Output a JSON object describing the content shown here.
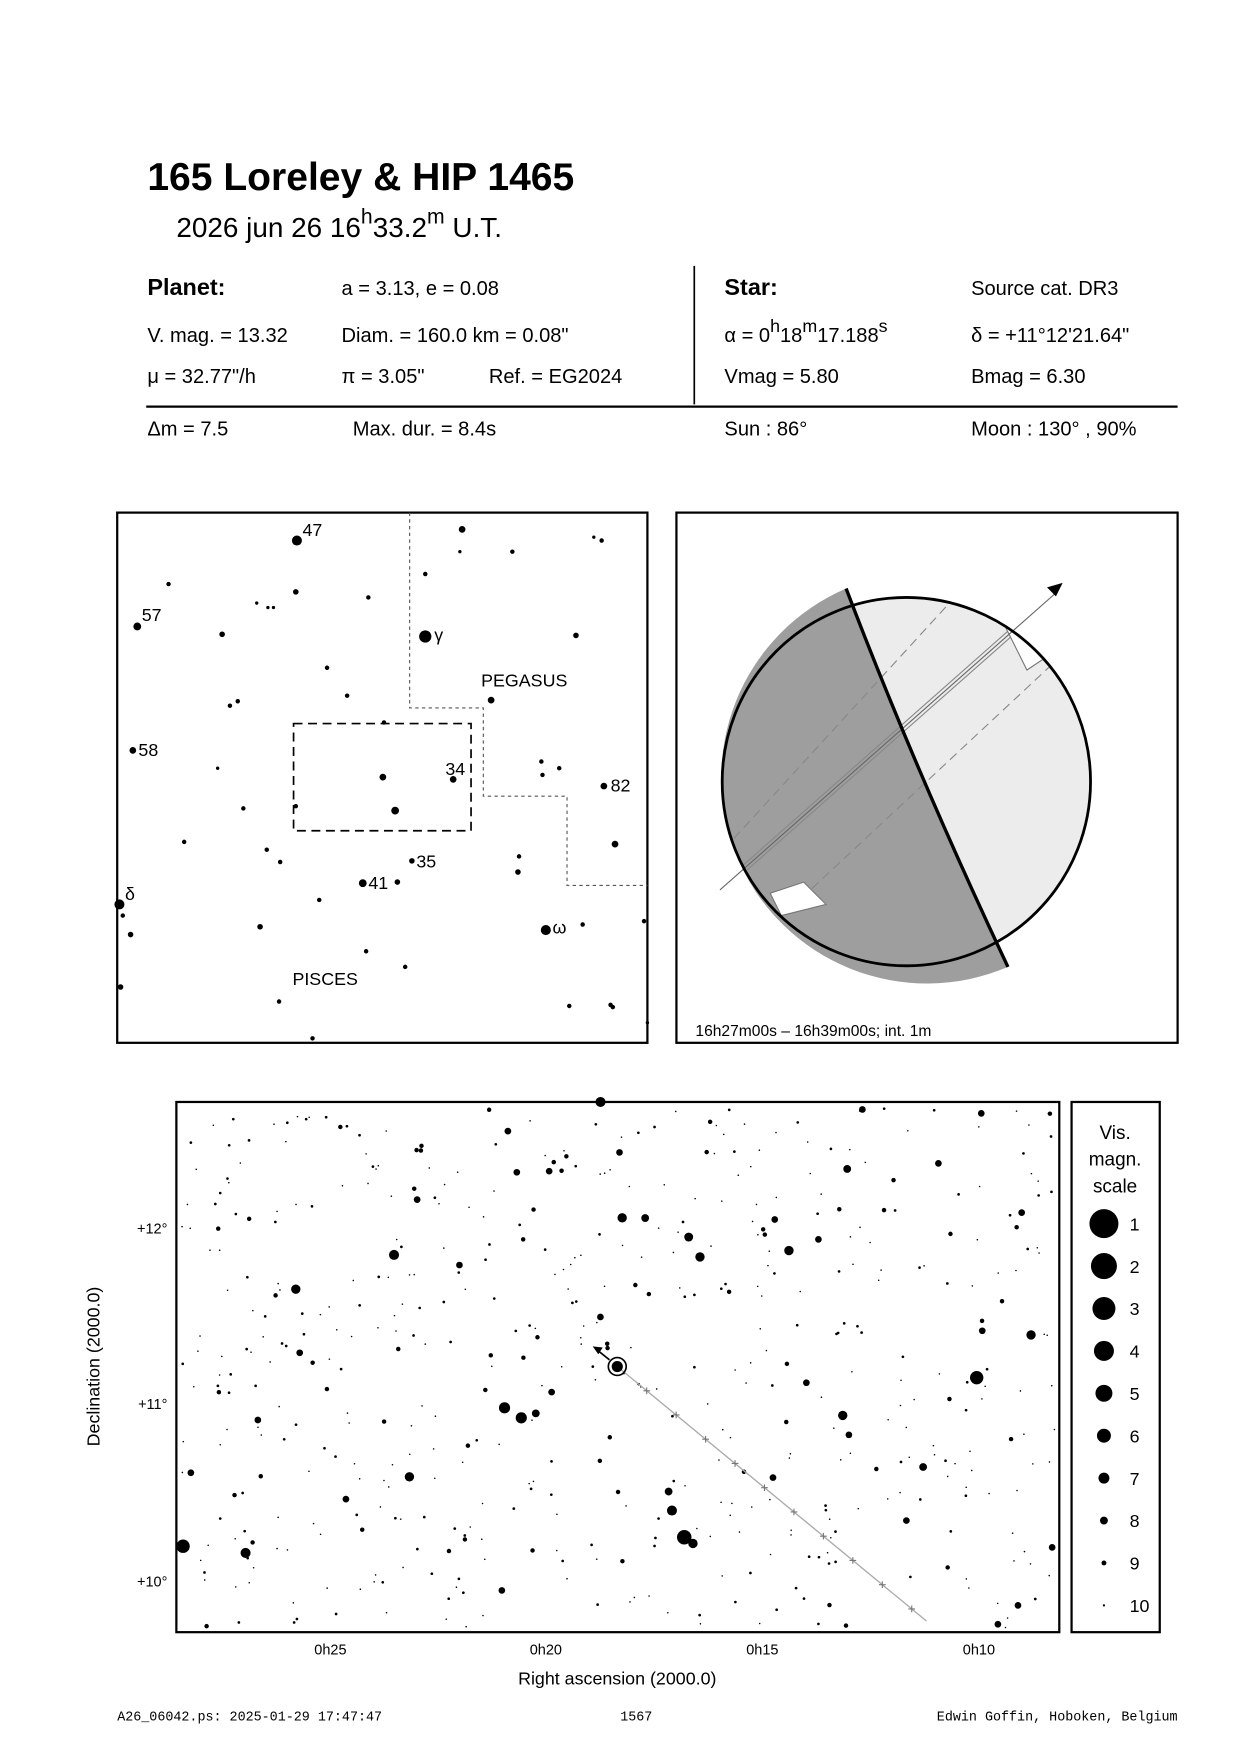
{
  "header": {
    "title": "165 Loreley  &  HIP 1465",
    "date_parts": [
      "2026 jun 26  16",
      "h",
      "33.2",
      "m",
      " U.T."
    ]
  },
  "planet": {
    "heading": "Planet:",
    "orbit": "a = 3.13, e = 0.08",
    "vmag": "V. mag. = 13.32",
    "diam": "Diam. = 160.0 km = 0.08\"",
    "mu": "μ =  32.77\"/h",
    "pi": "π =  3.05\"",
    "ref": "Ref. = EG2024"
  },
  "star": {
    "heading": "Star:",
    "source": "Source cat.  DR3",
    "alpha_parts": [
      "α =  0",
      "h",
      "18",
      "m",
      "17.188",
      "s"
    ],
    "delta": "δ = +11°12'21.64\"",
    "vmag": "Vmag =  5.80",
    "bmag": "Bmag =  6.30"
  },
  "event": {
    "dm": "Δm = 7.5",
    "maxdur": "Max. dur. = 8.4s",
    "sun": "Sun :  86°",
    "moon": "Moon : 130° , 90%"
  },
  "finder": {
    "labels": [
      "47",
      "57",
      "58",
      "γ",
      "PEGASUS",
      "34",
      "82",
      "35",
      "41",
      "δ",
      "ω",
      "PISCES"
    ]
  },
  "globe": {
    "caption": "16h27m00s – 16h39m00s; int.  1m"
  },
  "starchart": {
    "y_label": "Declination (2000.0)",
    "x_label": "Right ascension (2000.0)",
    "y_ticks": [
      "+12°",
      "+11°",
      "+10°"
    ],
    "x_ticks": [
      "0h25",
      "0h20",
      "0h15",
      "0h10"
    ]
  },
  "scale": {
    "title_lines": [
      "Vis.",
      "magn.",
      "scale"
    ],
    "magnitudes": [
      1,
      2,
      3,
      4,
      5,
      6,
      7,
      8,
      9,
      10
    ]
  },
  "footer": {
    "left": "A26_06042.ps: 2025-01-29 17:47:47",
    "center": "1567",
    "right": "Edwin Goffin, Hoboken, Belgium"
  }
}
